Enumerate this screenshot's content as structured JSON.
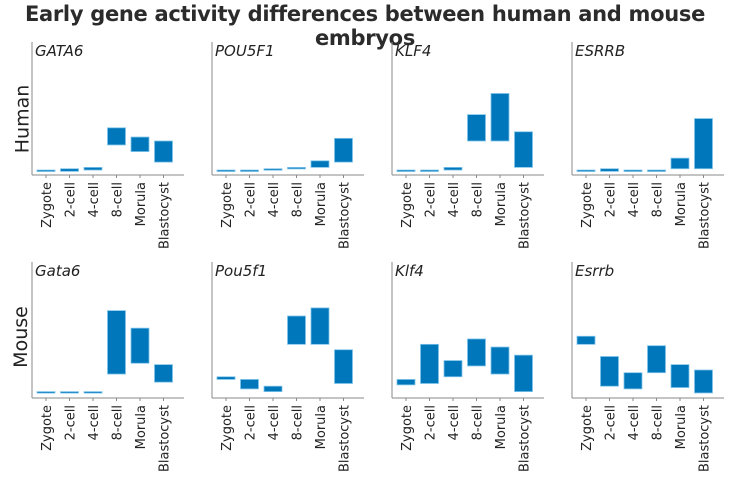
{
  "title": "Early gene activity differences between human and mouse embryos",
  "chart_data": {
    "type": "floating-bar",
    "title": "Early gene activity differences between human and mouse embryos",
    "categories": [
      "Zygote",
      "2-cell",
      "4-cell",
      "8-cell",
      "Morula",
      "Blastocyst"
    ],
    "value_scale": "relative expression, 0-100 (axis unlabeled)",
    "ylim": [
      0,
      100
    ],
    "grid": false,
    "bar_color": "#0077bb",
    "rows": [
      {
        "label": "Human",
        "panels": [
          {
            "gene": "GATA6",
            "ranges": [
              [
                2.5,
                3
              ],
              [
                2,
                4
              ],
              [
                3,
                5
              ],
              [
                22,
                35
              ],
              [
                17,
                28
              ],
              [
                9,
                25
              ]
            ]
          },
          {
            "gene": "POU5F1",
            "ranges": [
              [
                2,
                3
              ],
              [
                2,
                3
              ],
              [
                3,
                4
              ],
              [
                4,
                5
              ],
              [
                5,
                10
              ],
              [
                9,
                27
              ]
            ]
          },
          {
            "gene": "KLF4",
            "ranges": [
              [
                2,
                3
              ],
              [
                2,
                3
              ],
              [
                3,
                5
              ],
              [
                25,
                45
              ],
              [
                25,
                61
              ],
              [
                5,
                32
              ]
            ]
          },
          {
            "gene": "ESRRB",
            "ranges": [
              [
                2,
                3
              ],
              [
                2,
                4
              ],
              [
                2,
                3
              ],
              [
                2,
                3
              ],
              [
                4,
                12
              ],
              [
                4,
                42
              ]
            ]
          }
        ]
      },
      {
        "label": "Mouse",
        "panels": [
          {
            "gene": "Gata6",
            "ranges": [
              [
                3,
                4
              ],
              [
                3,
                4
              ],
              [
                3,
                4
              ],
              [
                17,
                64
              ],
              [
                25,
                51
              ],
              [
                11,
                24
              ]
            ]
          },
          {
            "gene": "Pou5f1",
            "ranges": [
              [
                13,
                15
              ],
              [
                6,
                13
              ],
              [
                4,
                8
              ],
              [
                39,
                60
              ],
              [
                39,
                66
              ],
              [
                10,
                35
              ]
            ]
          },
          {
            "gene": "Klf4",
            "ranges": [
              [
                9,
                13
              ],
              [
                10,
                39
              ],
              [
                15,
                27
              ],
              [
                23,
                43
              ],
              [
                17,
                37
              ],
              [
                4,
                31
              ]
            ]
          },
          {
            "gene": "Esrrb",
            "ranges": [
              [
                39,
                45
              ],
              [
                8,
                30
              ],
              [
                6,
                18
              ],
              [
                18,
                38
              ],
              [
                7,
                24
              ],
              [
                3,
                20
              ]
            ]
          }
        ]
      }
    ]
  }
}
